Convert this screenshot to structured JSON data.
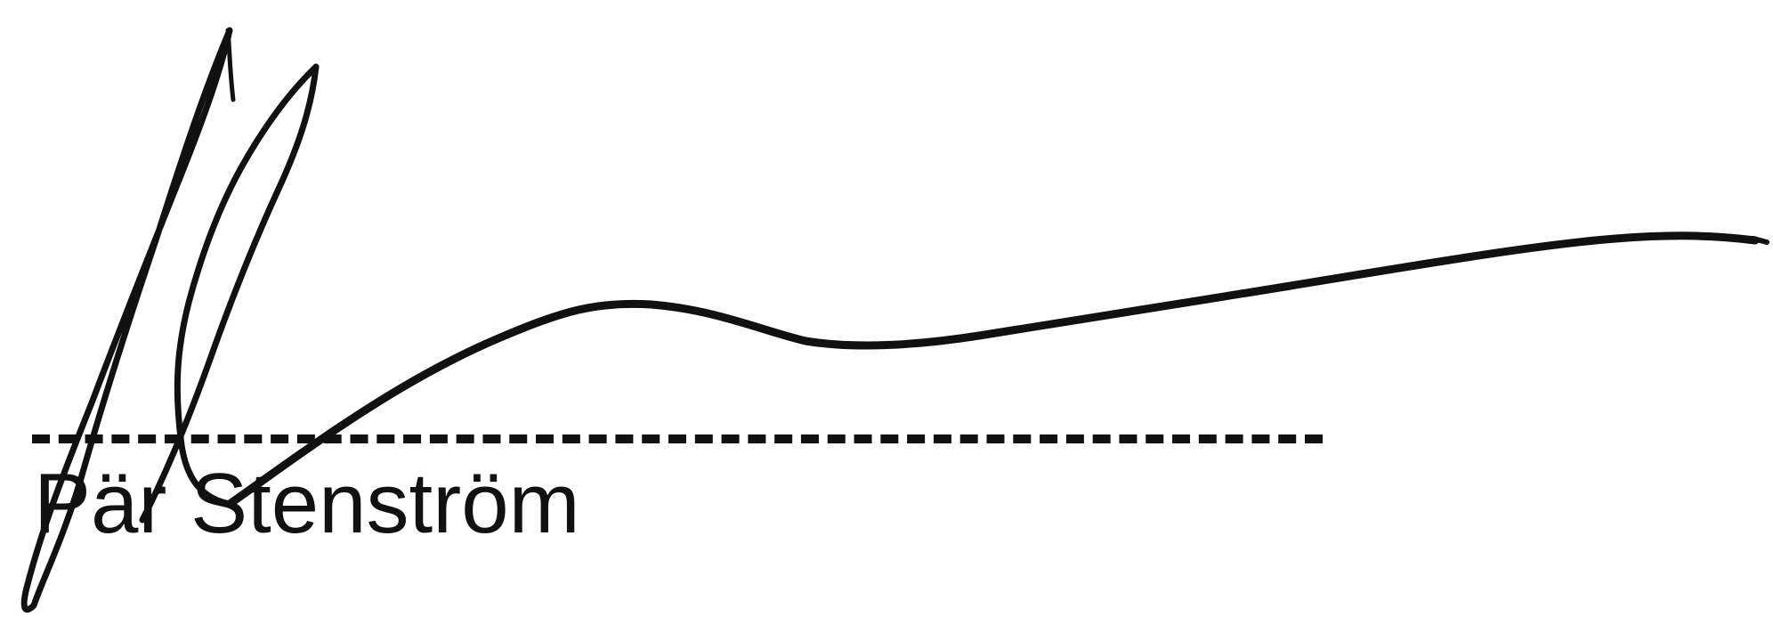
{
  "signature": {
    "signer_name": "Pär Stenström"
  },
  "colors": {
    "ink": "#111111",
    "background": "#ffffff"
  }
}
